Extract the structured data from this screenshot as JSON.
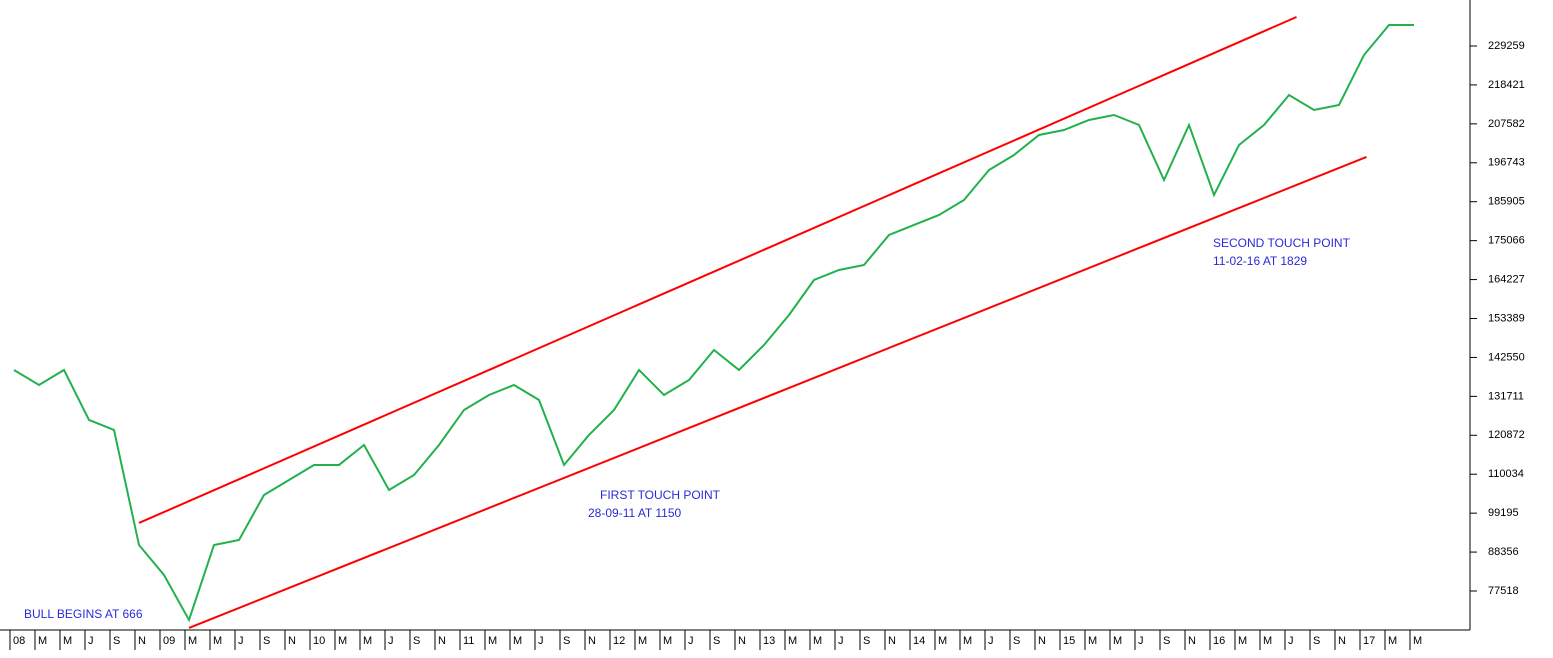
{
  "chart_data": {
    "type": "line",
    "categories": [
      "08",
      "M",
      "M",
      "J",
      "S",
      "N",
      "09",
      "M",
      "M",
      "J",
      "S",
      "N",
      "10",
      "M",
      "M",
      "J",
      "S",
      "N",
      "11",
      "M",
      "M",
      "J",
      "S",
      "N",
      "12",
      "M",
      "M",
      "J",
      "S",
      "N",
      "13",
      "M",
      "M",
      "J",
      "S",
      "N",
      "14",
      "M",
      "M",
      "J",
      "S",
      "N",
      "15",
      "M",
      "M",
      "J",
      "S",
      "N",
      "16",
      "M",
      "M",
      "J",
      "S",
      "N",
      "17",
      "M",
      "M"
    ],
    "series": [
      {
        "color": "#22b14c",
        "values": [
          139057,
          134880,
          139057,
          125137,
          122353,
          90337,
          81985,
          69457,
          90337,
          91729,
          104257,
          108433,
          112609,
          112609,
          118177,
          105649,
          109825,
          118177,
          127921,
          132097,
          134880,
          130705,
          112609,
          120961,
          127921,
          139057,
          132097,
          136273,
          144625,
          139057,
          146017,
          154369,
          164113,
          166897,
          168289,
          176641,
          179425,
          182209,
          186385,
          194737,
          198913,
          204481,
          205873,
          208657,
          210049,
          207265,
          191953,
          207265,
          187777,
          201697,
          207265,
          215617,
          211441,
          212833,
          226753,
          235105,
          235105
        ]
      }
    ],
    "trendlines": [
      {
        "color": "#ff0000",
        "x": [
          5,
          51.3
        ],
        "values": [
          96462,
          237332
        ]
      },
      {
        "color": "#ff0000",
        "x": [
          7,
          54.1
        ],
        "values": [
          67234,
          198357
        ]
      }
    ],
    "ylim": [
      66660,
      242066
    ],
    "yticks": [
      77518,
      88356,
      99195,
      110034,
      120872,
      131711,
      142550,
      153389,
      164227,
      175066,
      185905,
      196743,
      207582,
      218421,
      229259
    ],
    "annotations": [
      "BULL BEGINS AT 666",
      "FIRST TOUCH POINT",
      "28-09-11 AT 1150",
      "SECOND TOUCH POINT",
      "11-02-16 AT 1829"
    ]
  }
}
